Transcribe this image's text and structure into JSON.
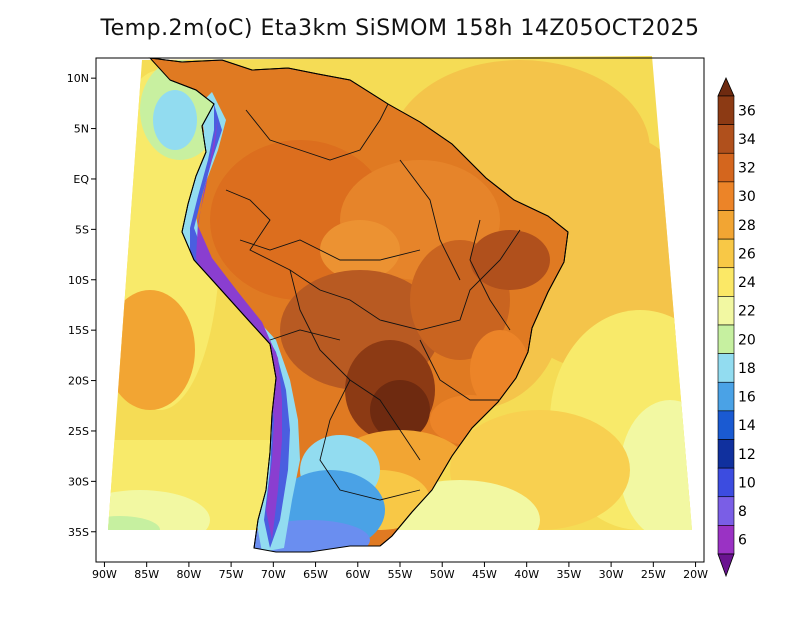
{
  "title": "Temp.2m(oC) Eta3km SiSMOM 158h 14Z05OCT2025",
  "map": {
    "lon_ticks": [
      "90W",
      "85W",
      "80W",
      "75W",
      "70W",
      "65W",
      "60W",
      "55W",
      "50W",
      "45W",
      "40W",
      "35W",
      "30W",
      "25W",
      "20W"
    ],
    "lat_ticks": [
      "10N",
      "5N",
      "EQ",
      "5S",
      "10S",
      "15S",
      "20S",
      "25S",
      "30S",
      "35S"
    ],
    "lon_range": [
      -91,
      -19
    ],
    "lat_range": [
      -38,
      12
    ]
  },
  "colorbar": {
    "labels": [
      "36",
      "34",
      "32",
      "30",
      "28",
      "26",
      "24",
      "22",
      "20",
      "18",
      "16",
      "14",
      "12",
      "10",
      "8",
      "6"
    ],
    "colors": [
      "#6e2a10",
      "#8c3a14",
      "#b0501c",
      "#d4661e",
      "#ec8428",
      "#f2a533",
      "#f8c846",
      "#fbe866",
      "#f2f8a2",
      "#c6f0a0",
      "#92dcf0",
      "#4aa2e6",
      "#1a5ad2",
      "#10309e",
      "#3c4ce0",
      "#7a5ee6",
      "#9a32c4",
      "#6a1490"
    ]
  }
}
